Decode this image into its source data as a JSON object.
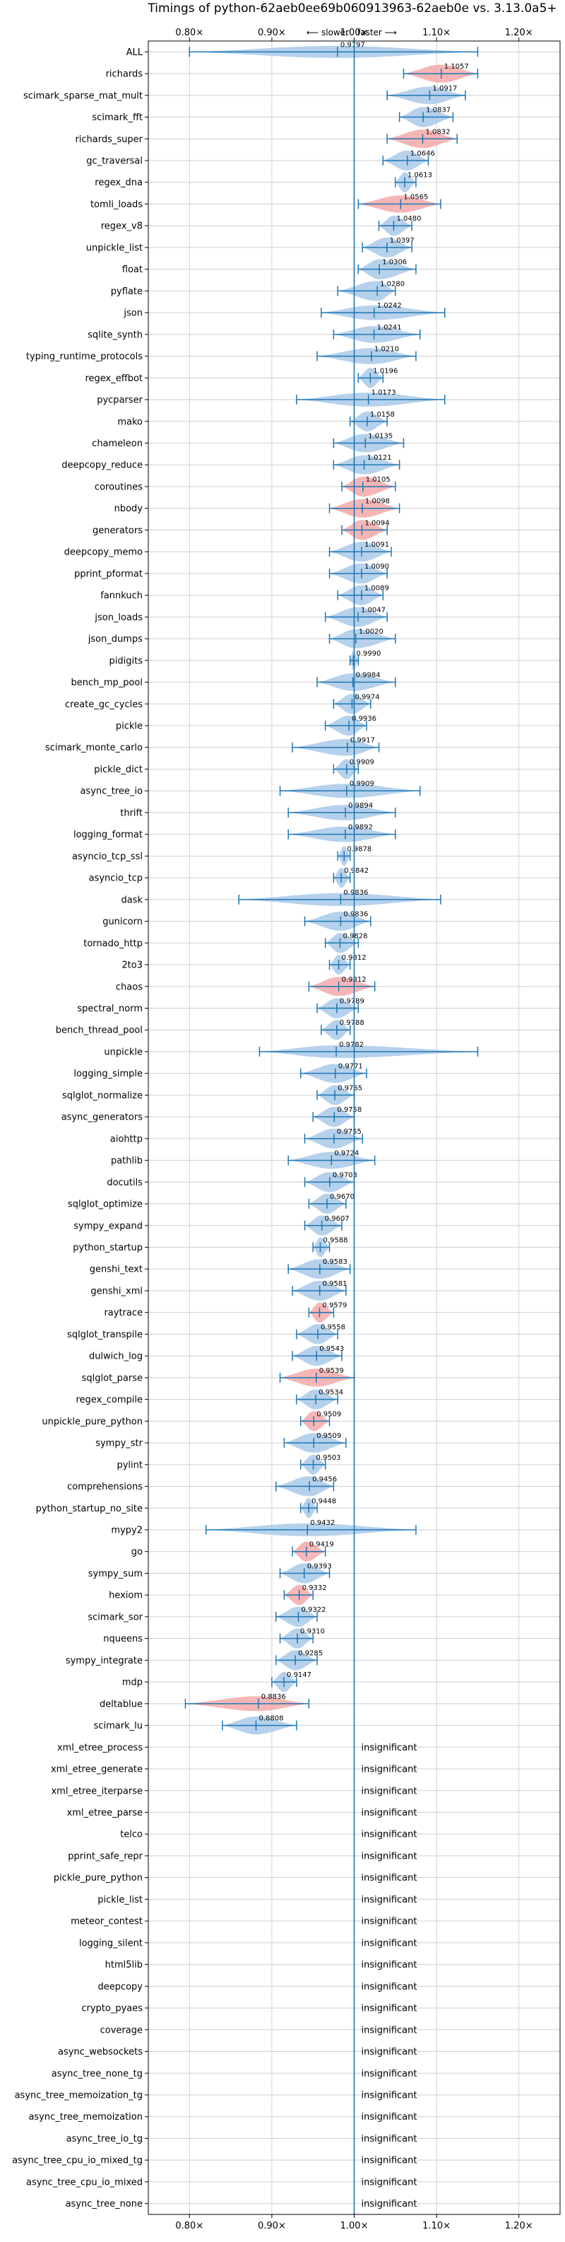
{
  "chart_data": {
    "type": "violin",
    "title": "Timings of python-62aeb0ee69b060913963-62aeb0e vs. 3.13.0a5+",
    "direction_hint": {
      "left": "⟵ slower",
      "right": "faster ⟶"
    },
    "xlim": [
      0.75,
      1.25
    ],
    "xticks": [
      0.8,
      0.9,
      1.0,
      1.1,
      1.2
    ],
    "xtick_labels": [
      "0.80×",
      "0.90×",
      "1.00×",
      "1.10×",
      "1.20×"
    ],
    "reference_line": 1.0,
    "grid": true,
    "colors": {
      "neutral": "#a9c9e8",
      "highlight": "#f4a9a9",
      "line": "#1f77b4"
    },
    "insignificant_label": "insignificant",
    "benchmarks": [
      {
        "name": "ALL",
        "value": 0.9797,
        "min": 0.8,
        "max": 1.15,
        "color": "neutral"
      },
      {
        "name": "richards",
        "value": 1.1057,
        "min": 1.06,
        "max": 1.15,
        "color": "highlight"
      },
      {
        "name": "scimark_sparse_mat_mult",
        "value": 1.0917,
        "min": 1.04,
        "max": 1.135,
        "color": "neutral"
      },
      {
        "name": "scimark_fft",
        "value": 1.0837,
        "min": 1.055,
        "max": 1.12,
        "color": "neutral"
      },
      {
        "name": "richards_super",
        "value": 1.0832,
        "min": 1.04,
        "max": 1.125,
        "color": "highlight"
      },
      {
        "name": "gc_traversal",
        "value": 1.0646,
        "min": 1.035,
        "max": 1.09,
        "color": "neutral"
      },
      {
        "name": "regex_dna",
        "value": 1.0613,
        "min": 1.05,
        "max": 1.075,
        "color": "neutral"
      },
      {
        "name": "tomli_loads",
        "value": 1.0565,
        "min": 1.005,
        "max": 1.105,
        "color": "highlight"
      },
      {
        "name": "regex_v8",
        "value": 1.048,
        "min": 1.03,
        "max": 1.07,
        "color": "neutral"
      },
      {
        "name": "unpickle_list",
        "value": 1.0397,
        "min": 1.01,
        "max": 1.07,
        "color": "neutral"
      },
      {
        "name": "float",
        "value": 1.0306,
        "min": 1.005,
        "max": 1.075,
        "color": "neutral"
      },
      {
        "name": "pyflate",
        "value": 1.028,
        "min": 0.98,
        "max": 1.05,
        "color": "neutral"
      },
      {
        "name": "json",
        "value": 1.0242,
        "min": 0.96,
        "max": 1.11,
        "color": "neutral"
      },
      {
        "name": "sqlite_synth",
        "value": 1.0241,
        "min": 0.975,
        "max": 1.08,
        "color": "neutral"
      },
      {
        "name": "typing_runtime_protocols",
        "value": 1.021,
        "min": 0.955,
        "max": 1.075,
        "color": "neutral"
      },
      {
        "name": "regex_effbot",
        "value": 1.0196,
        "min": 1.005,
        "max": 1.035,
        "color": "neutral"
      },
      {
        "name": "pycparser",
        "value": 1.0173,
        "min": 0.93,
        "max": 1.11,
        "color": "neutral"
      },
      {
        "name": "mako",
        "value": 1.0158,
        "min": 0.995,
        "max": 1.04,
        "color": "neutral"
      },
      {
        "name": "chameleon",
        "value": 1.0135,
        "min": 0.975,
        "max": 1.06,
        "color": "neutral"
      },
      {
        "name": "deepcopy_reduce",
        "value": 1.0121,
        "min": 0.975,
        "max": 1.055,
        "color": "neutral"
      },
      {
        "name": "coroutines",
        "value": 1.0105,
        "min": 0.985,
        "max": 1.05,
        "color": "highlight"
      },
      {
        "name": "nbody",
        "value": 1.0098,
        "min": 0.97,
        "max": 1.055,
        "color": "highlight"
      },
      {
        "name": "generators",
        "value": 1.0094,
        "min": 0.985,
        "max": 1.04,
        "color": "highlight"
      },
      {
        "name": "deepcopy_memo",
        "value": 1.0091,
        "min": 0.97,
        "max": 1.045,
        "color": "neutral"
      },
      {
        "name": "pprint_pformat",
        "value": 1.009,
        "min": 0.97,
        "max": 1.04,
        "color": "neutral"
      },
      {
        "name": "fannkuch",
        "value": 1.0089,
        "min": 0.98,
        "max": 1.035,
        "color": "neutral"
      },
      {
        "name": "json_loads",
        "value": 1.0047,
        "min": 0.965,
        "max": 1.04,
        "color": "neutral"
      },
      {
        "name": "json_dumps",
        "value": 1.002,
        "min": 0.97,
        "max": 1.05,
        "color": "neutral"
      },
      {
        "name": "pidigits",
        "value": 0.999,
        "min": 0.995,
        "max": 1.005,
        "color": "neutral"
      },
      {
        "name": "bench_mp_pool",
        "value": 0.9984,
        "min": 0.955,
        "max": 1.05,
        "color": "neutral"
      },
      {
        "name": "create_gc_cycles",
        "value": 0.9974,
        "min": 0.975,
        "max": 1.02,
        "color": "neutral"
      },
      {
        "name": "pickle",
        "value": 0.9936,
        "min": 0.965,
        "max": 1.015,
        "color": "neutral"
      },
      {
        "name": "scimark_monte_carlo",
        "value": 0.9917,
        "min": 0.925,
        "max": 1.03,
        "color": "neutral"
      },
      {
        "name": "pickle_dict",
        "value": 0.9909,
        "min": 0.975,
        "max": 1.005,
        "color": "neutral"
      },
      {
        "name": "async_tree_io",
        "value": 0.9909,
        "min": 0.91,
        "max": 1.08,
        "color": "neutral"
      },
      {
        "name": "thrift",
        "value": 0.9894,
        "min": 0.92,
        "max": 1.05,
        "color": "neutral"
      },
      {
        "name": "logging_format",
        "value": 0.9892,
        "min": 0.92,
        "max": 1.05,
        "color": "neutral"
      },
      {
        "name": "asyncio_tcp_ssl",
        "value": 0.9878,
        "min": 0.98,
        "max": 0.995,
        "color": "neutral"
      },
      {
        "name": "asyncio_tcp",
        "value": 0.9842,
        "min": 0.975,
        "max": 0.995,
        "color": "neutral"
      },
      {
        "name": "dask",
        "value": 0.9836,
        "min": 0.86,
        "max": 1.105,
        "color": "neutral"
      },
      {
        "name": "gunicorn",
        "value": 0.9836,
        "min": 0.94,
        "max": 1.02,
        "color": "neutral"
      },
      {
        "name": "tornado_http",
        "value": 0.9828,
        "min": 0.965,
        "max": 1.005,
        "color": "neutral"
      },
      {
        "name": "2to3",
        "value": 0.9812,
        "min": 0.97,
        "max": 0.995,
        "color": "neutral"
      },
      {
        "name": "chaos",
        "value": 0.9812,
        "min": 0.945,
        "max": 1.025,
        "color": "highlight"
      },
      {
        "name": "spectral_norm",
        "value": 0.9789,
        "min": 0.955,
        "max": 1.005,
        "color": "neutral"
      },
      {
        "name": "bench_thread_pool",
        "value": 0.9788,
        "min": 0.96,
        "max": 0.995,
        "color": "neutral"
      },
      {
        "name": "unpickle",
        "value": 0.9782,
        "min": 0.885,
        "max": 1.15,
        "color": "neutral"
      },
      {
        "name": "logging_simple",
        "value": 0.9771,
        "min": 0.935,
        "max": 1.015,
        "color": "neutral"
      },
      {
        "name": "sqlglot_normalize",
        "value": 0.9765,
        "min": 0.955,
        "max": 1.0,
        "color": "neutral"
      },
      {
        "name": "async_generators",
        "value": 0.9758,
        "min": 0.95,
        "max": 1.0,
        "color": "neutral"
      },
      {
        "name": "aiohttp",
        "value": 0.9755,
        "min": 0.94,
        "max": 1.01,
        "color": "neutral"
      },
      {
        "name": "pathlib",
        "value": 0.9724,
        "min": 0.92,
        "max": 1.025,
        "color": "neutral"
      },
      {
        "name": "docutils",
        "value": 0.9703,
        "min": 0.94,
        "max": 1.0,
        "color": "neutral"
      },
      {
        "name": "sqlglot_optimize",
        "value": 0.967,
        "min": 0.945,
        "max": 0.99,
        "color": "neutral"
      },
      {
        "name": "sympy_expand",
        "value": 0.9607,
        "min": 0.94,
        "max": 0.985,
        "color": "neutral"
      },
      {
        "name": "python_startup",
        "value": 0.9588,
        "min": 0.95,
        "max": 0.97,
        "color": "neutral"
      },
      {
        "name": "genshi_text",
        "value": 0.9583,
        "min": 0.92,
        "max": 0.995,
        "color": "neutral"
      },
      {
        "name": "genshi_xml",
        "value": 0.9581,
        "min": 0.925,
        "max": 0.99,
        "color": "neutral"
      },
      {
        "name": "raytrace",
        "value": 0.9579,
        "min": 0.945,
        "max": 0.975,
        "color": "highlight"
      },
      {
        "name": "sqlglot_transpile",
        "value": 0.9558,
        "min": 0.93,
        "max": 0.98,
        "color": "neutral"
      },
      {
        "name": "dulwich_log",
        "value": 0.9543,
        "min": 0.925,
        "max": 0.985,
        "color": "neutral"
      },
      {
        "name": "sqlglot_parse",
        "value": 0.9539,
        "min": 0.91,
        "max": 1.0,
        "color": "highlight"
      },
      {
        "name": "regex_compile",
        "value": 0.9534,
        "min": 0.93,
        "max": 0.98,
        "color": "neutral"
      },
      {
        "name": "unpickle_pure_python",
        "value": 0.9509,
        "min": 0.935,
        "max": 0.97,
        "color": "highlight"
      },
      {
        "name": "sympy_str",
        "value": 0.9509,
        "min": 0.915,
        "max": 0.99,
        "color": "neutral"
      },
      {
        "name": "pylint",
        "value": 0.9503,
        "min": 0.935,
        "max": 0.965,
        "color": "neutral"
      },
      {
        "name": "comprehensions",
        "value": 0.9456,
        "min": 0.905,
        "max": 0.975,
        "color": "neutral"
      },
      {
        "name": "python_startup_no_site",
        "value": 0.9448,
        "min": 0.935,
        "max": 0.955,
        "color": "neutral"
      },
      {
        "name": "mypy2",
        "value": 0.9432,
        "min": 0.82,
        "max": 1.075,
        "color": "neutral"
      },
      {
        "name": "go",
        "value": 0.9419,
        "min": 0.925,
        "max": 0.965,
        "color": "highlight"
      },
      {
        "name": "sympy_sum",
        "value": 0.9393,
        "min": 0.91,
        "max": 0.97,
        "color": "neutral"
      },
      {
        "name": "hexiom",
        "value": 0.9332,
        "min": 0.915,
        "max": 0.95,
        "color": "highlight"
      },
      {
        "name": "scimark_sor",
        "value": 0.9322,
        "min": 0.905,
        "max": 0.955,
        "color": "neutral"
      },
      {
        "name": "nqueens",
        "value": 0.931,
        "min": 0.91,
        "max": 0.95,
        "color": "neutral"
      },
      {
        "name": "sympy_integrate",
        "value": 0.9285,
        "min": 0.905,
        "max": 0.955,
        "color": "neutral"
      },
      {
        "name": "mdp",
        "value": 0.9147,
        "min": 0.9,
        "max": 0.93,
        "color": "neutral"
      },
      {
        "name": "deltablue",
        "value": 0.8836,
        "min": 0.795,
        "max": 0.945,
        "color": "highlight"
      },
      {
        "name": "scimark_lu",
        "value": 0.8808,
        "min": 0.84,
        "max": 0.93,
        "color": "neutral"
      },
      {
        "name": "xml_etree_process",
        "value": null
      },
      {
        "name": "xml_etree_generate",
        "value": null
      },
      {
        "name": "xml_etree_iterparse",
        "value": null
      },
      {
        "name": "xml_etree_parse",
        "value": null
      },
      {
        "name": "telco",
        "value": null
      },
      {
        "name": "pprint_safe_repr",
        "value": null
      },
      {
        "name": "pickle_pure_python",
        "value": null
      },
      {
        "name": "pickle_list",
        "value": null
      },
      {
        "name": "meteor_contest",
        "value": null
      },
      {
        "name": "logging_silent",
        "value": null
      },
      {
        "name": "html5lib",
        "value": null
      },
      {
        "name": "deepcopy",
        "value": null
      },
      {
        "name": "crypto_pyaes",
        "value": null
      },
      {
        "name": "coverage",
        "value": null
      },
      {
        "name": "async_websockets",
        "value": null
      },
      {
        "name": "async_tree_none_tg",
        "value": null
      },
      {
        "name": "async_tree_memoization_tg",
        "value": null
      },
      {
        "name": "async_tree_memoization",
        "value": null
      },
      {
        "name": "async_tree_io_tg",
        "value": null
      },
      {
        "name": "async_tree_cpu_io_mixed_tg",
        "value": null
      },
      {
        "name": "async_tree_cpu_io_mixed",
        "value": null
      },
      {
        "name": "async_tree_none",
        "value": null
      }
    ]
  }
}
